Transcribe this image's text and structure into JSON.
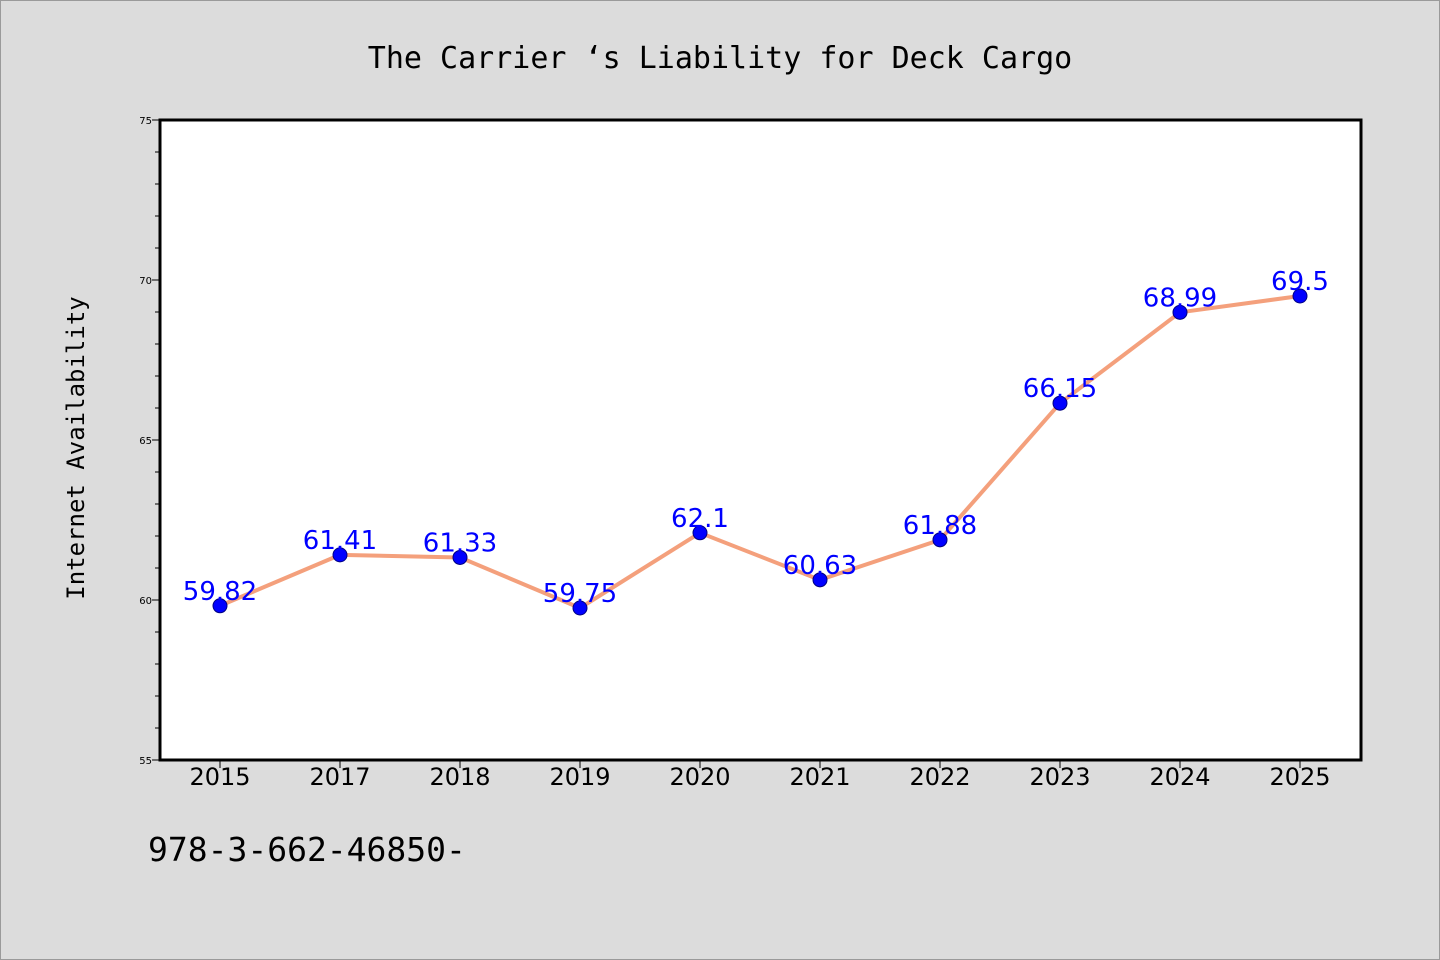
{
  "footer_note": "978-3-662-46850-",
  "colors": {
    "background": "#dcdcdc",
    "plot_background": "#ffffff",
    "line": "#f4a07c",
    "marker": "#0000ff",
    "marker_edge": "#000080",
    "data_label": "#0000ff"
  },
  "chart_data": {
    "type": "line",
    "title": "The Carrier ‘s Liability for Deck Cargo",
    "xlabel": "",
    "ylabel": "Internet Availability",
    "categories": [
      "2015",
      "2017",
      "2018",
      "2019",
      "2020",
      "2021",
      "2022",
      "2023",
      "2024",
      "2025"
    ],
    "series": [
      {
        "values": [
          59.82,
          61.41,
          61.33,
          59.75,
          62.1,
          60.63,
          61.88,
          66.15,
          68.99,
          69.5
        ],
        "labels": [
          "59.82",
          "61.41",
          "61.33",
          "59.75",
          "62.1",
          "60.63",
          "61.88",
          "66.15",
          "68.99",
          "69.5"
        ]
      }
    ],
    "ylim": [
      55,
      75
    ],
    "yticks": [
      55,
      60,
      65,
      70,
      75
    ],
    "grid": false,
    "legend": "none"
  }
}
